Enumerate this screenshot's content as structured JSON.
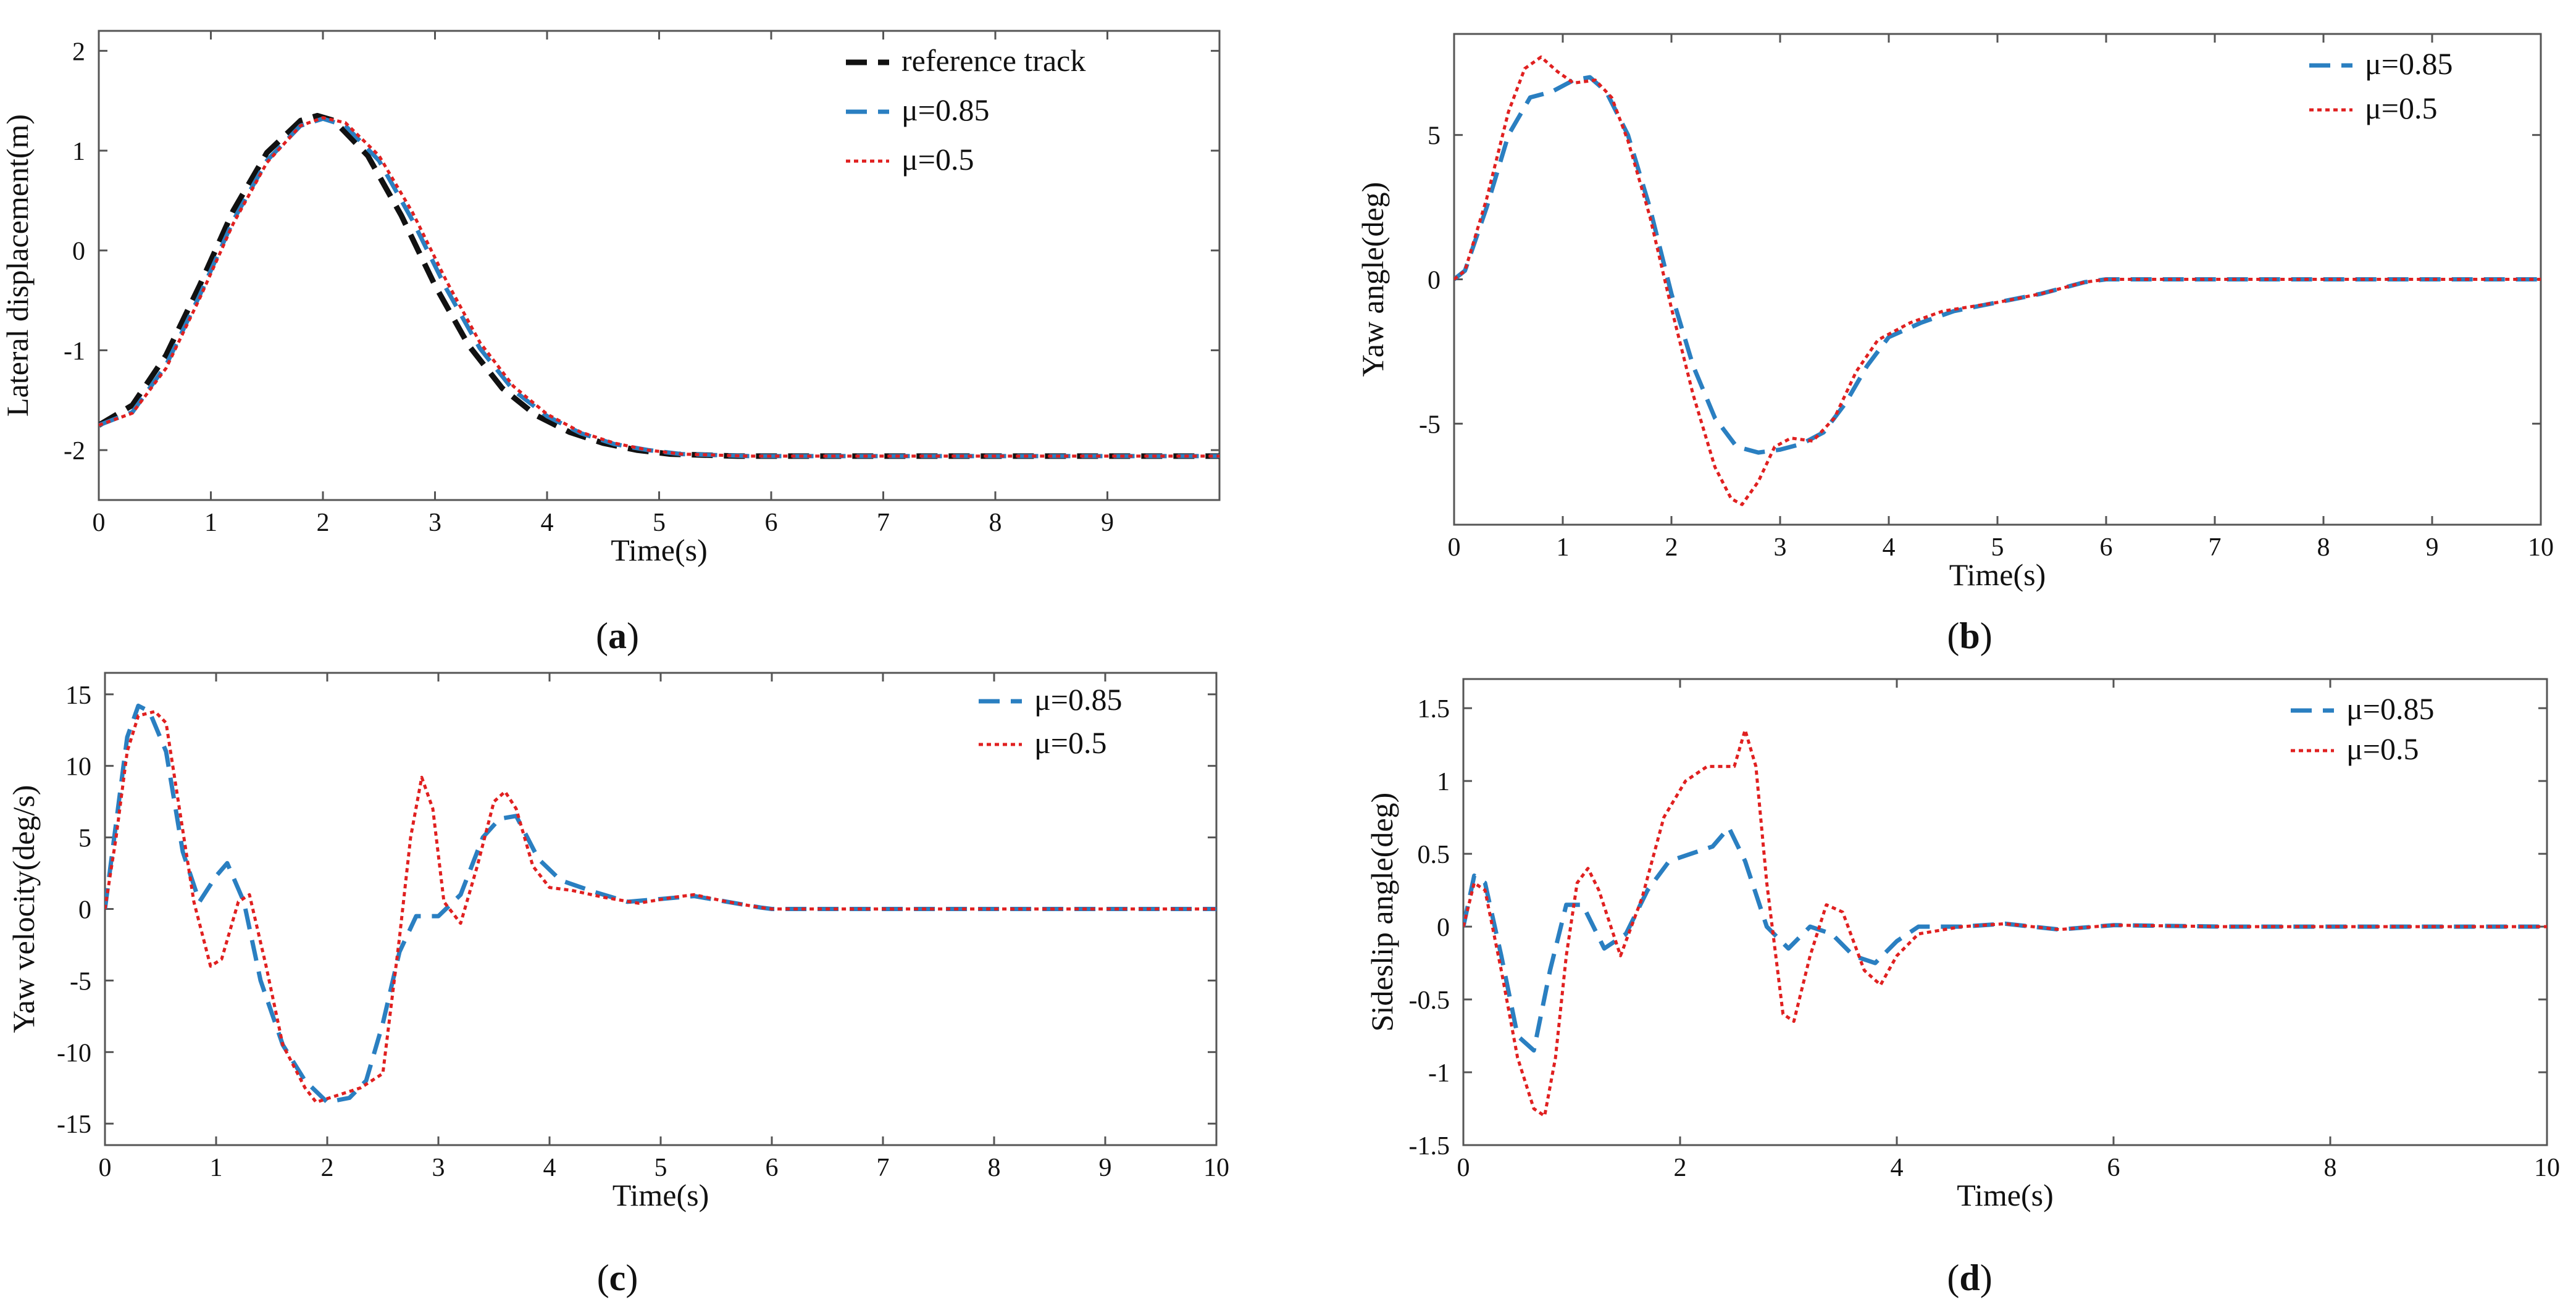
{
  "chart_data": [
    {
      "type": "line",
      "panel_label": "a",
      "xlabel": "Time(s)",
      "ylabel": "Lateral displacement(m)",
      "xlim": [
        0,
        10
      ],
      "ylim": [
        -2.5,
        2.2
      ],
      "xticks": [
        0,
        1,
        2,
        3,
        4,
        5,
        6,
        7,
        8,
        9
      ],
      "yticks": [
        -2,
        -1,
        0,
        1,
        2
      ],
      "legend_position": "top-right",
      "series": [
        {
          "name": "reference track",
          "color": "#111111",
          "style": "dashed",
          "x": [
            0,
            0.3,
            0.6,
            0.9,
            1.2,
            1.5,
            1.8,
            1.95,
            2.1,
            2.4,
            2.7,
            3.0,
            3.3,
            3.6,
            3.9,
            4.2,
            4.5,
            4.8,
            5.1,
            5.4,
            5.7,
            6.0,
            7.0,
            8.0,
            9.0,
            10.0
          ],
          "y": [
            -1.75,
            -1.55,
            -1.05,
            -0.35,
            0.4,
            0.98,
            1.3,
            1.35,
            1.3,
            0.95,
            0.35,
            -0.35,
            -0.95,
            -1.38,
            -1.65,
            -1.82,
            -1.93,
            -2.0,
            -2.04,
            -2.05,
            -2.06,
            -2.06,
            -2.06,
            -2.06,
            -2.06,
            -2.06
          ]
        },
        {
          "name": "μ=0.85",
          "color": "#2a7fc1",
          "style": "dashed",
          "x": [
            0,
            0.3,
            0.6,
            0.9,
            1.2,
            1.5,
            1.8,
            2.0,
            2.2,
            2.5,
            2.8,
            3.1,
            3.4,
            3.7,
            4.0,
            4.3,
            4.6,
            4.9,
            5.2,
            5.5,
            5.8,
            6.0,
            7.0,
            8.0,
            9.0,
            10.0
          ],
          "y": [
            -1.75,
            -1.62,
            -1.15,
            -0.45,
            0.3,
            0.9,
            1.25,
            1.32,
            1.25,
            0.9,
            0.3,
            -0.38,
            -0.98,
            -1.4,
            -1.66,
            -1.83,
            -1.94,
            -2.0,
            -2.04,
            -2.05,
            -2.06,
            -2.06,
            -2.06,
            -2.06,
            -2.06,
            -2.06
          ]
        },
        {
          "name": "μ=0.5",
          "color": "#e02020",
          "style": "dotted",
          "x": [
            0,
            0.3,
            0.6,
            0.9,
            1.2,
            1.5,
            1.8,
            2.0,
            2.2,
            2.5,
            2.8,
            3.1,
            3.4,
            3.7,
            4.0,
            4.3,
            4.6,
            4.9,
            5.2,
            5.5,
            5.8,
            6.0,
            7.0,
            8.0,
            9.0,
            10.0
          ],
          "y": [
            -1.75,
            -1.63,
            -1.18,
            -0.48,
            0.27,
            0.88,
            1.25,
            1.33,
            1.28,
            0.95,
            0.38,
            -0.3,
            -0.92,
            -1.36,
            -1.64,
            -1.82,
            -1.93,
            -2.0,
            -2.04,
            -2.05,
            -2.06,
            -2.06,
            -2.06,
            -2.06,
            -2.06,
            -2.06
          ]
        }
      ]
    },
    {
      "type": "line",
      "panel_label": "b",
      "xlabel": "Time(s)",
      "ylabel": "Yaw angle(deg)",
      "xlim": [
        0,
        10
      ],
      "ylim": [
        -8.5,
        8.5
      ],
      "xticks": [
        0,
        1,
        2,
        3,
        4,
        5,
        6,
        7,
        8,
        9,
        10
      ],
      "yticks": [
        -5,
        0,
        5
      ],
      "legend_position": "top-right",
      "series": [
        {
          "name": "μ=0.85",
          "color": "#2a7fc1",
          "style": "dashed",
          "x": [
            0,
            0.1,
            0.3,
            0.5,
            0.7,
            0.9,
            1.1,
            1.25,
            1.4,
            1.6,
            1.8,
            2.0,
            2.2,
            2.4,
            2.6,
            2.8,
            3.0,
            3.2,
            3.4,
            3.6,
            3.8,
            4.0,
            4.3,
            4.6,
            5.0,
            5.4,
            5.8,
            6.0,
            7.0,
            8.0,
            9.0,
            10.0
          ],
          "y": [
            0,
            0.3,
            2.5,
            5.0,
            6.3,
            6.5,
            6.9,
            7.0,
            6.5,
            5.0,
            2.5,
            -0.5,
            -3.0,
            -4.8,
            -5.8,
            -6.0,
            -5.9,
            -5.7,
            -5.3,
            -4.3,
            -3.0,
            -2.0,
            -1.5,
            -1.1,
            -0.8,
            -0.5,
            -0.1,
            0,
            0,
            0,
            0,
            0
          ]
        },
        {
          "name": "μ=0.5",
          "color": "#e02020",
          "style": "dotted",
          "x": [
            0,
            0.1,
            0.3,
            0.5,
            0.65,
            0.8,
            0.95,
            1.1,
            1.3,
            1.45,
            1.6,
            1.8,
            2.0,
            2.2,
            2.4,
            2.55,
            2.65,
            2.8,
            2.95,
            3.1,
            3.3,
            3.5,
            3.7,
            3.9,
            4.2,
            4.5,
            5.0,
            5.4,
            5.8,
            6.0,
            7.0,
            8.0,
            9.0,
            10.0
          ],
          "y": [
            0,
            0.3,
            2.8,
            5.8,
            7.3,
            7.7,
            7.2,
            6.8,
            6.9,
            6.3,
            4.8,
            2.2,
            -1.0,
            -4.0,
            -6.5,
            -7.6,
            -7.8,
            -7.0,
            -5.8,
            -5.5,
            -5.6,
            -4.8,
            -3.2,
            -2.1,
            -1.5,
            -1.1,
            -0.8,
            -0.5,
            -0.1,
            0,
            0,
            0,
            0,
            0
          ]
        }
      ]
    },
    {
      "type": "line",
      "panel_label": "c",
      "xlabel": "Time(s)",
      "ylabel": "Yaw velocity(deg/s)",
      "xlim": [
        0,
        10
      ],
      "ylim": [
        -16.5,
        16.5
      ],
      "xticks": [
        0,
        1,
        2,
        3,
        4,
        5,
        6,
        7,
        8,
        9,
        10
      ],
      "yticks": [
        -15,
        -10,
        -5,
        0,
        5,
        10,
        15
      ],
      "legend_position": "top-right",
      "series": [
        {
          "name": "μ=0.85",
          "color": "#2a7fc1",
          "style": "dashed",
          "x": [
            0,
            0.1,
            0.2,
            0.3,
            0.4,
            0.55,
            0.7,
            0.85,
            1.0,
            1.1,
            1.25,
            1.4,
            1.6,
            1.8,
            2.0,
            2.2,
            2.35,
            2.5,
            2.65,
            2.8,
            3.0,
            3.2,
            3.4,
            3.55,
            3.7,
            3.9,
            4.1,
            4.4,
            4.7,
            5.0,
            5.3,
            5.6,
            5.9,
            6.0,
            7.0,
            8.0,
            9.0,
            10.0
          ],
          "y": [
            0,
            6.0,
            12.0,
            14.2,
            13.8,
            11.0,
            4.0,
            0.5,
            2.3,
            3.2,
            0.5,
            -5.0,
            -9.5,
            -12.0,
            -13.5,
            -13.2,
            -12.0,
            -8.0,
            -3.0,
            -0.5,
            -0.5,
            1.0,
            5.0,
            6.3,
            6.5,
            3.5,
            2.0,
            1.2,
            0.5,
            0.7,
            0.9,
            0.5,
            0.1,
            0,
            0,
            0,
            0,
            0
          ]
        },
        {
          "name": "μ=0.5",
          "color": "#e02020",
          "style": "dotted",
          "x": [
            0,
            0.1,
            0.2,
            0.3,
            0.45,
            0.55,
            0.65,
            0.8,
            0.95,
            1.05,
            1.2,
            1.3,
            1.45,
            1.6,
            1.8,
            1.9,
            2.1,
            2.3,
            2.5,
            2.65,
            2.75,
            2.85,
            2.95,
            3.05,
            3.2,
            3.35,
            3.5,
            3.6,
            3.7,
            3.85,
            4.0,
            4.2,
            4.5,
            4.8,
            5.1,
            5.3,
            5.6,
            5.9,
            6.0,
            7.0,
            8.0,
            9.0,
            10.0
          ],
          "y": [
            0,
            5.0,
            11.0,
            13.5,
            13.8,
            13.0,
            8.0,
            0.5,
            -4.0,
            -3.5,
            0.5,
            1.0,
            -4.0,
            -9.5,
            -12.5,
            -13.5,
            -13.0,
            -12.5,
            -11.5,
            -2.0,
            5.0,
            9.2,
            7.0,
            0.5,
            -1.0,
            3.0,
            7.5,
            8.2,
            7.0,
            3.0,
            1.5,
            1.3,
            0.8,
            0.4,
            0.8,
            1.0,
            0.5,
            0.1,
            0,
            0,
            0,
            0,
            0
          ]
        }
      ]
    },
    {
      "type": "line",
      "panel_label": "d",
      "xlabel": "Time(s)",
      "ylabel": "Sideslip angle(deg)",
      "xlim": [
        0,
        10
      ],
      "ylim": [
        -1.5,
        1.7
      ],
      "xticks": [
        0,
        2,
        4,
        6,
        8,
        10
      ],
      "yticks": [
        -1.5,
        -1,
        -0.5,
        0,
        0.5,
        1,
        1.5
      ],
      "ytick_labels": [
        "-1.5",
        "-1",
        "-0.5",
        "0",
        "0.5",
        "1",
        "1.5"
      ],
      "legend_position": "top-right",
      "series": [
        {
          "name": "μ=0.85",
          "color": "#2a7fc1",
          "style": "dashed",
          "x": [
            0,
            0.1,
            0.2,
            0.35,
            0.5,
            0.65,
            0.8,
            0.95,
            1.1,
            1.3,
            1.5,
            1.7,
            1.9,
            2.1,
            2.3,
            2.45,
            2.6,
            2.8,
            3.0,
            3.2,
            3.4,
            3.6,
            3.8,
            4.0,
            4.2,
            4.6,
            5.0,
            5.5,
            6.0,
            7.0,
            8.0,
            9.0,
            10.0
          ],
          "y": [
            0,
            0.35,
            0.3,
            -0.2,
            -0.75,
            -0.85,
            -0.3,
            0.15,
            0.15,
            -0.15,
            -0.05,
            0.25,
            0.45,
            0.5,
            0.55,
            0.68,
            0.45,
            0.0,
            -0.15,
            0.0,
            -0.05,
            -0.2,
            -0.25,
            -0.1,
            0.0,
            0.0,
            0.02,
            -0.02,
            0.01,
            0,
            0,
            0,
            0
          ]
        },
        {
          "name": "μ=0.5",
          "color": "#e02020",
          "style": "dotted",
          "x": [
            0,
            0.1,
            0.2,
            0.35,
            0.5,
            0.65,
            0.75,
            0.85,
            0.95,
            1.05,
            1.15,
            1.25,
            1.45,
            1.65,
            1.85,
            2.05,
            2.25,
            2.4,
            2.5,
            2.6,
            2.7,
            2.8,
            2.95,
            3.05,
            3.2,
            3.35,
            3.5,
            3.7,
            3.85,
            4.0,
            4.2,
            4.6,
            5.0,
            5.5,
            6.0,
            7.0,
            8.0,
            9.0,
            10.0
          ],
          "y": [
            0,
            0.3,
            0.25,
            -0.3,
            -0.9,
            -1.25,
            -1.3,
            -0.9,
            -0.2,
            0.3,
            0.4,
            0.25,
            -0.2,
            0.2,
            0.75,
            1.0,
            1.1,
            1.1,
            1.1,
            1.35,
            1.1,
            0.3,
            -0.6,
            -0.65,
            -0.2,
            0.15,
            0.1,
            -0.3,
            -0.4,
            -0.2,
            -0.05,
            0.0,
            0.02,
            -0.02,
            0.01,
            0,
            0,
            0,
            0
          ]
        }
      ]
    }
  ]
}
